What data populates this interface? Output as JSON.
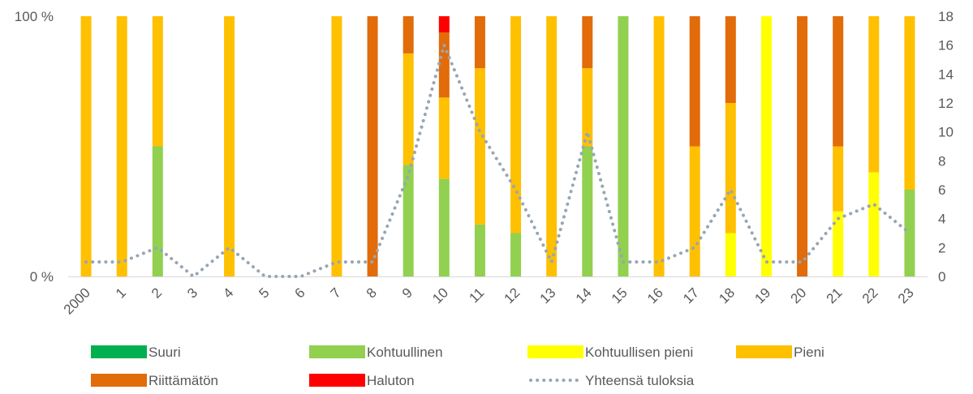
{
  "chart_data": {
    "type": "bar",
    "stacked": true,
    "percent_stacked": true,
    "categories": [
      "2000",
      "1",
      "2",
      "3",
      "4",
      "5",
      "6",
      "7",
      "8",
      "9",
      "10",
      "11",
      "12",
      "13",
      "14",
      "15",
      "16",
      "17",
      "18",
      "19",
      "20",
      "21",
      "22",
      "23"
    ],
    "y_left_ticks": [
      "0 %",
      "100 %"
    ],
    "y_right_ticks": [
      0,
      2,
      4,
      6,
      8,
      10,
      12,
      14,
      16,
      18
    ],
    "y_right_range": [
      0,
      18
    ],
    "series": [
      {
        "name": "Suuri",
        "color": "#00B050",
        "values": [
          0,
          0,
          0,
          0,
          0,
          0,
          0,
          0,
          0,
          0,
          0,
          0,
          0,
          0,
          0,
          0,
          0,
          0,
          0,
          0,
          0,
          0,
          0,
          0
        ]
      },
      {
        "name": "Kohtuullinen",
        "color": "#92D050",
        "values": [
          0,
          0,
          1,
          0,
          0,
          0,
          0,
          0,
          0,
          3,
          6,
          2,
          1,
          0,
          5,
          1,
          0,
          0,
          0,
          0,
          0,
          0,
          0,
          1
        ]
      },
      {
        "name": "Kohtuullisen pieni",
        "color": "#FFFF00",
        "values": [
          0,
          0,
          0,
          0,
          0,
          0,
          0,
          0,
          0,
          0,
          0,
          0,
          0,
          0,
          0,
          0,
          0,
          0,
          1,
          1,
          0,
          1,
          2,
          0
        ]
      },
      {
        "name": "Pieni",
        "color": "#FFC000",
        "values": [
          1,
          1,
          1,
          0,
          2,
          0,
          0,
          1,
          0,
          3,
          5,
          6,
          5,
          1,
          3,
          0,
          1,
          1,
          3,
          0,
          0,
          1,
          3,
          2
        ]
      },
      {
        "name": "Riittämätön",
        "color": "#E26B0A",
        "values": [
          0,
          0,
          0,
          0,
          0,
          0,
          0,
          0,
          1,
          1,
          4,
          2,
          0,
          0,
          2,
          0,
          0,
          1,
          2,
          0,
          1,
          2,
          0,
          0
        ]
      },
      {
        "name": "Haluton",
        "color": "#FF0000",
        "values": [
          0,
          0,
          0,
          0,
          0,
          0,
          0,
          0,
          0,
          0,
          1,
          0,
          0,
          0,
          0,
          0,
          0,
          0,
          0,
          0,
          0,
          0,
          0,
          0
        ]
      }
    ],
    "line": {
      "name": "Yhteensä tuloksia",
      "color": "#97A6B4",
      "axis": "right",
      "values": [
        1,
        1,
        2,
        0,
        2,
        0,
        0,
        1,
        1,
        7,
        16,
        10,
        6,
        1,
        10,
        1,
        1,
        2,
        6,
        1,
        1,
        4,
        5,
        3
      ]
    },
    "legend_position": "bottom",
    "grid": false
  }
}
